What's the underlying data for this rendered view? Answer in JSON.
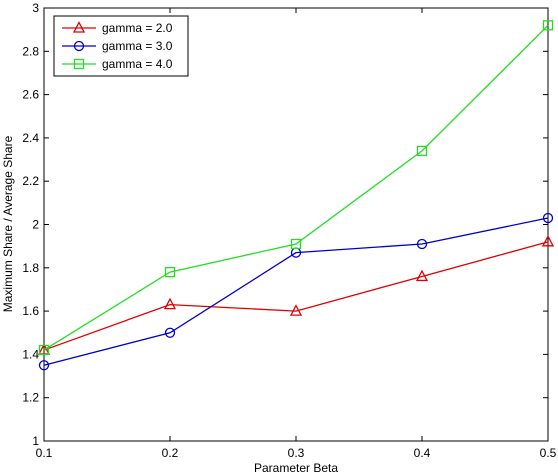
{
  "chart_data": {
    "type": "line",
    "xlabel": "Parameter Beta",
    "ylabel": "Maximum Share / Average Share",
    "xlim": [
      0.1,
      0.5
    ],
    "ylim": [
      1,
      3
    ],
    "x": [
      0.1,
      0.2,
      0.3,
      0.4,
      0.5
    ],
    "x_ticks": [
      "0.1",
      "0.2",
      "0.3",
      "0.4",
      "0.5"
    ],
    "y_ticks": [
      "1",
      "1.2",
      "1.4",
      "1.6",
      "1.8",
      "2",
      "2.2",
      "2.4",
      "2.6",
      "2.8",
      "3"
    ],
    "grid": false,
    "legend_position": "top-left",
    "series": [
      {
        "name": "gamma = 2.0",
        "color": "#e00000",
        "marker": "triangle",
        "values": [
          1.42,
          1.63,
          1.6,
          1.76,
          1.92
        ]
      },
      {
        "name": "gamma = 3.0",
        "color": "#0000cc",
        "marker": "circle",
        "values": [
          1.35,
          1.5,
          1.87,
          1.91,
          2.03
        ]
      },
      {
        "name": "gamma = 4.0",
        "color": "#22dd22",
        "marker": "square",
        "values": [
          1.42,
          1.78,
          1.91,
          2.34,
          2.92
        ]
      }
    ]
  }
}
